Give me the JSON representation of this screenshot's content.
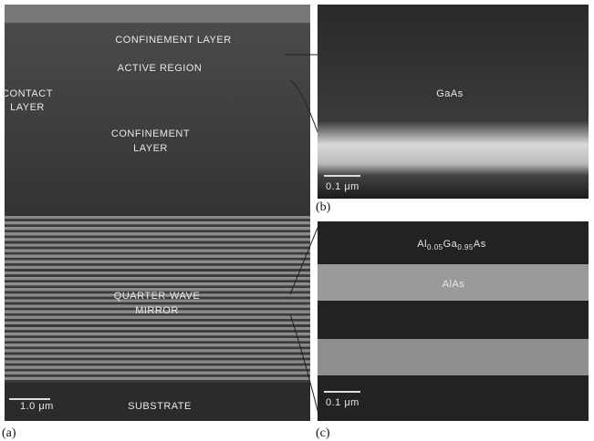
{
  "panels": {
    "a": {
      "caption": "(a)",
      "labels": {
        "confinement_top": "CONFINEMENT LAYER",
        "active": "ACTIVE REGION",
        "contact": [
          "CONTACT",
          "LAYER"
        ],
        "confinement": [
          "CONFINEMENT",
          "LAYER"
        ],
        "mirror": [
          "QUARTER-WAVE",
          "MIRROR"
        ],
        "substrate": "SUBSTRATE"
      },
      "scale_bar": "1.0 μm"
    },
    "b": {
      "caption": "(b)",
      "labels": {
        "material": "GaAs"
      },
      "scale_bar": "0.1 μm"
    },
    "c": {
      "caption": "(c)",
      "labels": {
        "alloy": [
          "Al",
          "0.05",
          "Ga",
          "0.95",
          "As"
        ],
        "alas": "AlAs"
      },
      "scale_bar": "0.1 μm"
    }
  }
}
